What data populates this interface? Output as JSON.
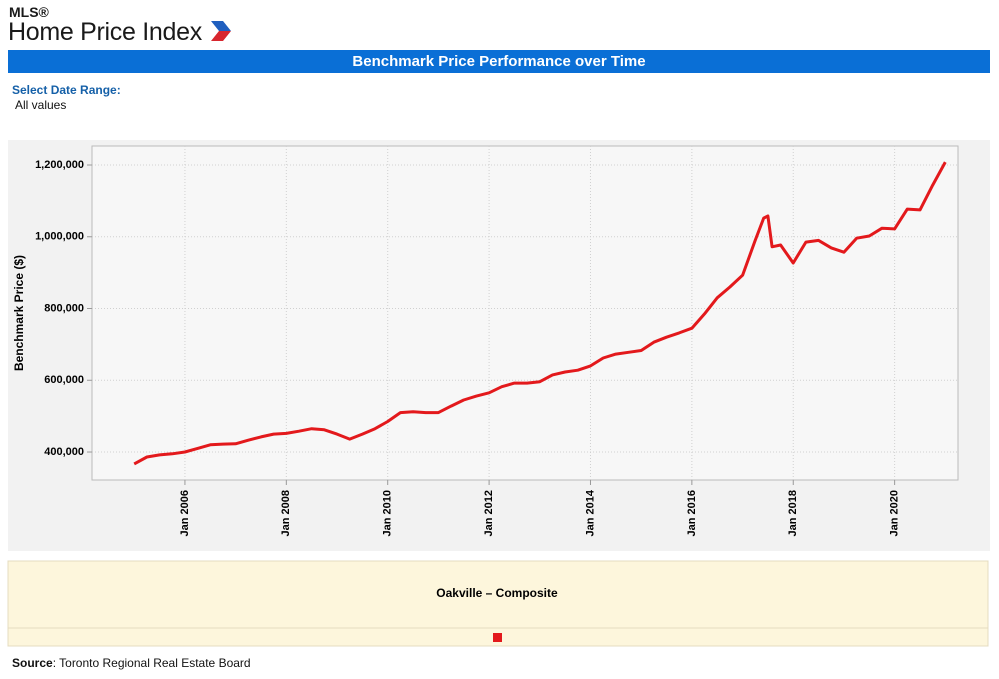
{
  "header": {
    "mls": "MLS®",
    "title": "Home Price Index",
    "banner": "Benchmark Price Performance over Time"
  },
  "filter": {
    "label": "Select Date Range:",
    "value": "All values"
  },
  "chart_data": {
    "type": "line",
    "y_label": "Benchmark Price ($)",
    "x": [
      "2005-01",
      "2005-04",
      "2005-07",
      "2005-10",
      "2006-01",
      "2006-04",
      "2006-07",
      "2006-10",
      "2007-01",
      "2007-04",
      "2007-07",
      "2007-10",
      "2008-01",
      "2008-04",
      "2008-07",
      "2008-10",
      "2009-01",
      "2009-04",
      "2009-07",
      "2009-10",
      "2010-01",
      "2010-04",
      "2010-07",
      "2010-10",
      "2011-01",
      "2011-04",
      "2011-07",
      "2011-10",
      "2012-01",
      "2012-04",
      "2012-07",
      "2012-10",
      "2013-01",
      "2013-04",
      "2013-07",
      "2013-10",
      "2014-01",
      "2014-04",
      "2014-07",
      "2014-10",
      "2015-01",
      "2015-04",
      "2015-07",
      "2015-10",
      "2016-01",
      "2016-04",
      "2016-07",
      "2016-10",
      "2017-01",
      "2017-04",
      "2017-06",
      "2017-07",
      "2017-08",
      "2017-10",
      "2018-01",
      "2018-04",
      "2018-07",
      "2018-10",
      "2019-01",
      "2019-04",
      "2019-07",
      "2019-10",
      "2020-01",
      "2020-04",
      "2020-07",
      "2020-10",
      "2021-01"
    ],
    "series": [
      {
        "name": "Oakville – Composite",
        "color": "#e3191c",
        "values": [
          367000,
          386000,
          392000,
          395000,
          400000,
          410000,
          420000,
          422000,
          423000,
          433000,
          442000,
          450000,
          452000,
          458000,
          465000,
          462000,
          450000,
          436000,
          450000,
          465000,
          485000,
          510000,
          512000,
          510000,
          510000,
          528000,
          545000,
          556000,
          565000,
          582000,
          592000,
          592000,
          596000,
          615000,
          623000,
          628000,
          640000,
          662000,
          673000,
          678000,
          683000,
          706000,
          720000,
          732000,
          745000,
          785000,
          830000,
          860000,
          893000,
          990000,
          1052000,
          1058000,
          972000,
          977000,
          927000,
          985000,
          990000,
          969000,
          957000,
          996000,
          1002000,
          1024000,
          1022000,
          1077000,
          1075000,
          1144000,
          1208000
        ]
      }
    ],
    "xlim": [
      "2004-03",
      "2021-04"
    ],
    "xticks": [
      {
        "value": "2006-01",
        "label": "Jan 2006"
      },
      {
        "value": "2008-01",
        "label": "Jan 2008"
      },
      {
        "value": "2010-01",
        "label": "Jan 2010"
      },
      {
        "value": "2012-01",
        "label": "Jan 2012"
      },
      {
        "value": "2014-01",
        "label": "Jan 2014"
      },
      {
        "value": "2016-01",
        "label": "Jan 2016"
      },
      {
        "value": "2018-01",
        "label": "Jan 2018"
      },
      {
        "value": "2020-01",
        "label": "Jan 2020"
      }
    ],
    "ylim": [
      322000,
      1253000
    ],
    "yticks": [
      {
        "value": 400000,
        "label": "400,000"
      },
      {
        "value": 600000,
        "label": "600,000"
      },
      {
        "value": 800000,
        "label": "800,000"
      },
      {
        "value": 1000000,
        "label": "1,000,000"
      },
      {
        "value": 1200000,
        "label": "1,200,000"
      }
    ],
    "grid": true
  },
  "source": {
    "label": "Source",
    "text": ": Toronto Regional Real Estate Board"
  }
}
